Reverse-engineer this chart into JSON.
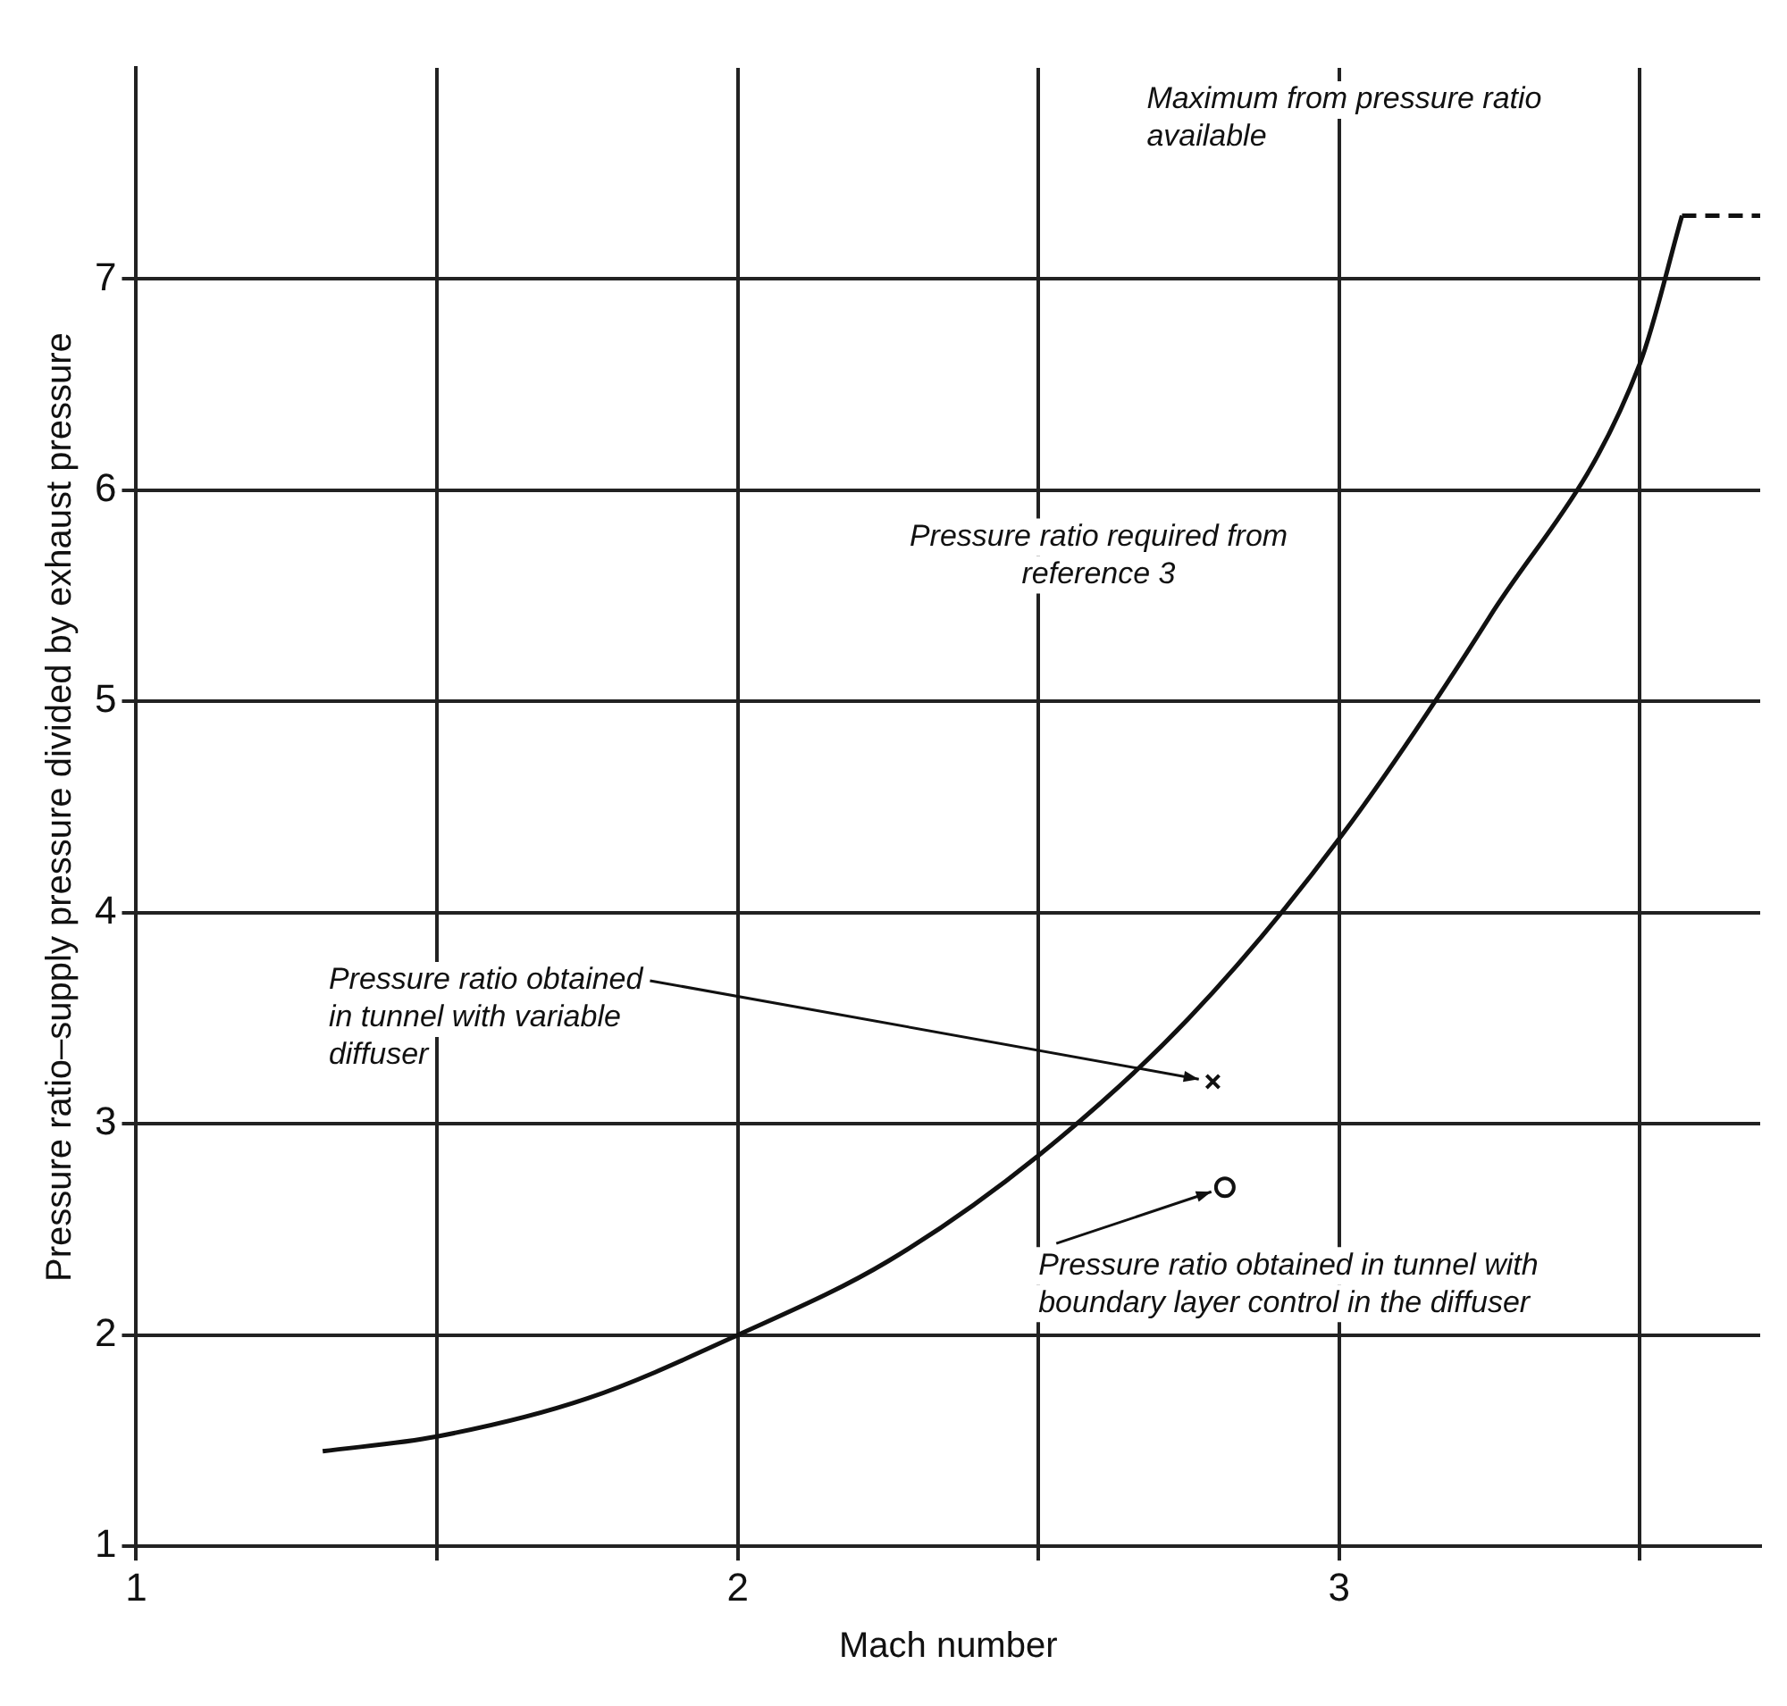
{
  "chart_data": {
    "type": "line",
    "xlabel": "Mach number",
    "ylabel": "Pressure ratio–supply pressure divided by exhaust pressure",
    "xlim": [
      1,
      3.7
    ],
    "ylim": [
      1,
      8
    ],
    "xticks": [
      1,
      {
        "value": 1.5,
        "label": null
      },
      2,
      {
        "value": 2.5,
        "label": null
      },
      3,
      {
        "value": 3.5,
        "label": null
      }
    ],
    "yticks": [
      1,
      2,
      3,
      4,
      5,
      6,
      7
    ],
    "grid": true,
    "legend": false,
    "series": [
      {
        "color": "#111111",
        "marker": "none",
        "x": [
          1.31,
          1.5,
          1.75,
          2.0,
          2.25,
          2.5,
          2.75,
          3.0,
          3.25,
          3.5,
          3.57
        ],
        "values": [
          1.45,
          1.52,
          1.7,
          2.0,
          2.35,
          2.85,
          3.5,
          4.35,
          5.4,
          6.6,
          7.3
        ]
      },
      {
        "type": "line",
        "color": "#111111",
        "marker": "none",
        "line_style": "dashed",
        "x": [
          3.57,
          3.7
        ],
        "values": [
          7.3,
          7.3
        ]
      },
      {
        "type": "scatter",
        "color": "#111111",
        "marker": "cross",
        "x": [
          2.79
        ],
        "values": [
          3.2
        ]
      },
      {
        "type": "scatter",
        "color": "#111111",
        "marker": "circle",
        "x": [
          2.81
        ],
        "values": [
          2.7
        ]
      }
    ],
    "annotations": [
      "Maximum from pressure ratio available",
      "Pressure ratio required from reference 3",
      {
        "text": "Pressure ratio obtained in tunnel with variable diffuser",
        "x": 2.79,
        "y": 3.2
      },
      {
        "text": "Pressure ratio obtained in tunnel with boundary layer control in the diffuser",
        "x": 2.81,
        "y": 2.7
      }
    ]
  }
}
